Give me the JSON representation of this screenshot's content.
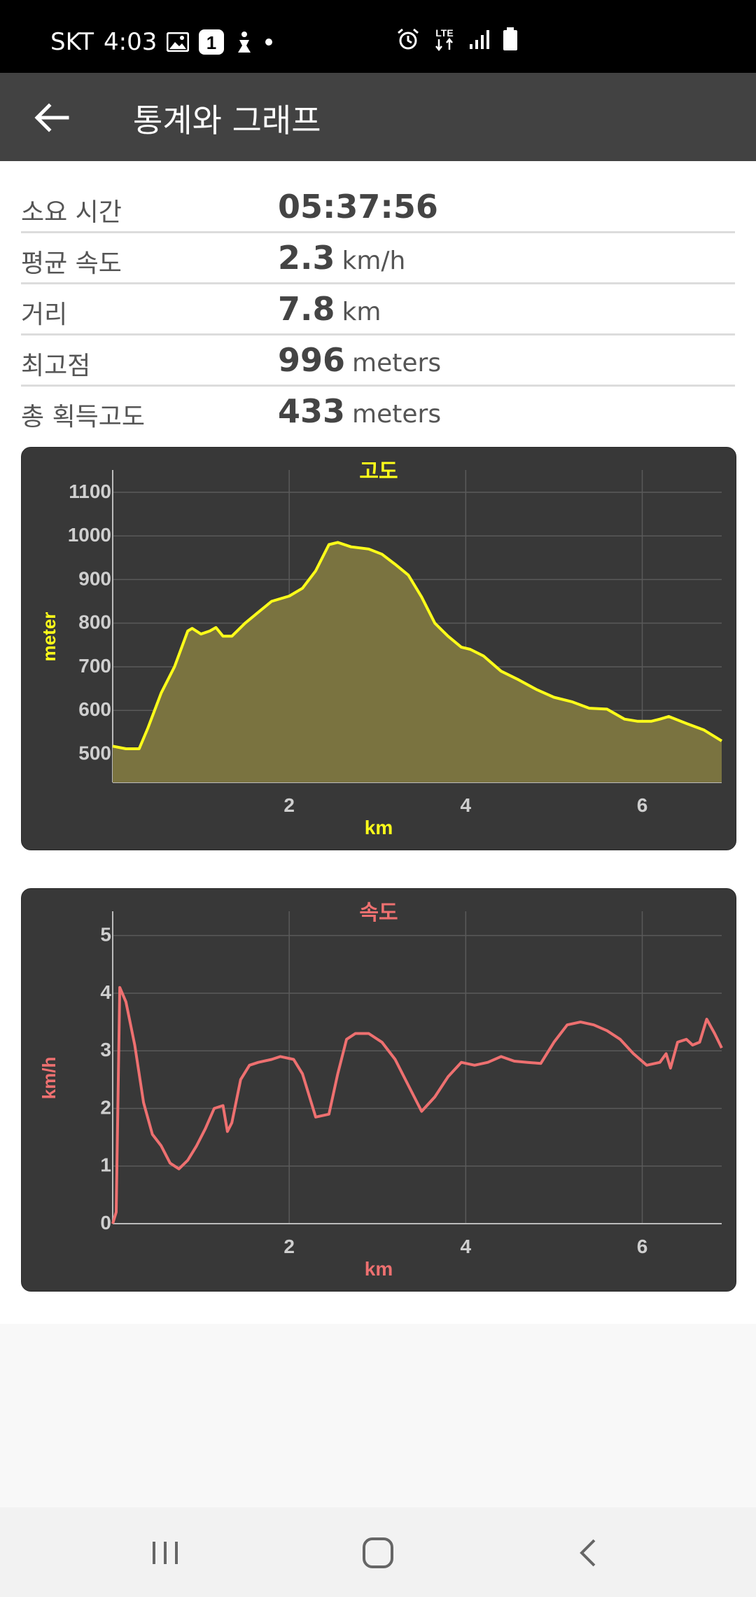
{
  "status_bar": {
    "carrier": "SKT",
    "time": "4:03",
    "network": "LTE"
  },
  "app_bar": {
    "title": "통계와 그래프"
  },
  "stats": [
    {
      "label": "소요 시간",
      "value": "05:37:56",
      "unit": ""
    },
    {
      "label": "평균 속도",
      "value": "2.3",
      "unit": "km/h"
    },
    {
      "label": "거리",
      "value": "7.8",
      "unit": "km"
    },
    {
      "label": "최고점",
      "value": "996",
      "unit": "meters"
    },
    {
      "label": "총 획득고도",
      "value": "433",
      "unit": "meters"
    }
  ],
  "colors": {
    "altitude_line": "#ffff1a",
    "altitude_fill": "#7a7340",
    "speed_line": "#ee7070",
    "card_bg": "#383838"
  },
  "chart_data": [
    {
      "type": "area",
      "title": "고도",
      "xlabel": "km",
      "ylabel": "meter",
      "xlim": [
        0,
        6.9
      ],
      "ylim": [
        435,
        1135
      ],
      "x_ticks": [
        "2",
        "4",
        "6"
      ],
      "x_tick_values": [
        2,
        4,
        6
      ],
      "y_ticks": [
        "500",
        "600",
        "700",
        "800",
        "900",
        "1000",
        "1100"
      ],
      "y_tick_values": [
        500,
        600,
        700,
        800,
        900,
        1000,
        1100
      ],
      "grid": true,
      "x": [
        0,
        0.15,
        0.3,
        0.4,
        0.55,
        0.7,
        0.85,
        0.9,
        1.0,
        1.1,
        1.17,
        1.25,
        1.35,
        1.5,
        1.65,
        1.8,
        2.0,
        2.15,
        2.3,
        2.45,
        2.55,
        2.7,
        2.9,
        3.05,
        3.2,
        3.35,
        3.5,
        3.65,
        3.8,
        3.95,
        4.05,
        4.2,
        4.4,
        4.6,
        4.8,
        5.0,
        5.2,
        5.4,
        5.6,
        5.8,
        5.95,
        6.1,
        6.2,
        6.3,
        6.5,
        6.7,
        6.9
      ],
      "y": [
        518,
        512,
        512,
        560,
        640,
        700,
        782,
        788,
        775,
        782,
        790,
        770,
        770,
        800,
        825,
        850,
        862,
        880,
        920,
        980,
        985,
        975,
        970,
        958,
        935,
        910,
        860,
        800,
        770,
        745,
        740,
        725,
        690,
        670,
        648,
        630,
        620,
        605,
        603,
        580,
        575,
        575,
        580,
        586,
        570,
        555,
        530
      ]
    },
    {
      "type": "line",
      "title": "속도",
      "xlabel": "km",
      "ylabel": "km/h",
      "xlim": [
        0,
        6.9
      ],
      "ylim": [
        0,
        5.3
      ],
      "x_ticks": [
        "2",
        "4",
        "6"
      ],
      "x_tick_values": [
        2,
        4,
        6
      ],
      "y_ticks": [
        "0",
        "1",
        "2",
        "3",
        "4",
        "5"
      ],
      "y_tick_values": [
        0,
        1,
        2,
        3,
        4,
        5
      ],
      "grid": true,
      "x": [
        0,
        0.04,
        0.08,
        0.15,
        0.25,
        0.35,
        0.45,
        0.55,
        0.65,
        0.75,
        0.85,
        0.95,
        1.05,
        1.15,
        1.25,
        1.3,
        1.35,
        1.45,
        1.55,
        1.65,
        1.8,
        1.9,
        2.05,
        2.15,
        2.3,
        2.45,
        2.55,
        2.65,
        2.75,
        2.9,
        3.05,
        3.2,
        3.35,
        3.5,
        3.65,
        3.8,
        3.95,
        4.1,
        4.25,
        4.4,
        4.55,
        4.7,
        4.85,
        5.0,
        5.15,
        5.3,
        5.45,
        5.6,
        5.75,
        5.9,
        6.05,
        6.2,
        6.27,
        6.32,
        6.4,
        6.5,
        6.57,
        6.65,
        6.73,
        6.82,
        6.9
      ],
      "y": [
        0,
        0.2,
        4.1,
        3.85,
        3.1,
        2.1,
        1.55,
        1.35,
        1.05,
        0.95,
        1.1,
        1.35,
        1.65,
        2.0,
        2.05,
        1.6,
        1.75,
        2.5,
        2.75,
        2.8,
        2.85,
        2.9,
        2.85,
        2.6,
        1.85,
        1.9,
        2.6,
        3.2,
        3.3,
        3.3,
        3.15,
        2.85,
        2.4,
        1.95,
        2.2,
        2.55,
        2.8,
        2.75,
        2.8,
        2.9,
        2.82,
        2.8,
        2.78,
        3.15,
        3.45,
        3.5,
        3.45,
        3.35,
        3.2,
        2.95,
        2.75,
        2.8,
        2.95,
        2.7,
        3.15,
        3.2,
        3.1,
        3.15,
        3.55,
        3.3,
        3.05
      ]
    }
  ],
  "nav": {
    "recents": "recent-apps",
    "home": "home",
    "back": "back"
  }
}
